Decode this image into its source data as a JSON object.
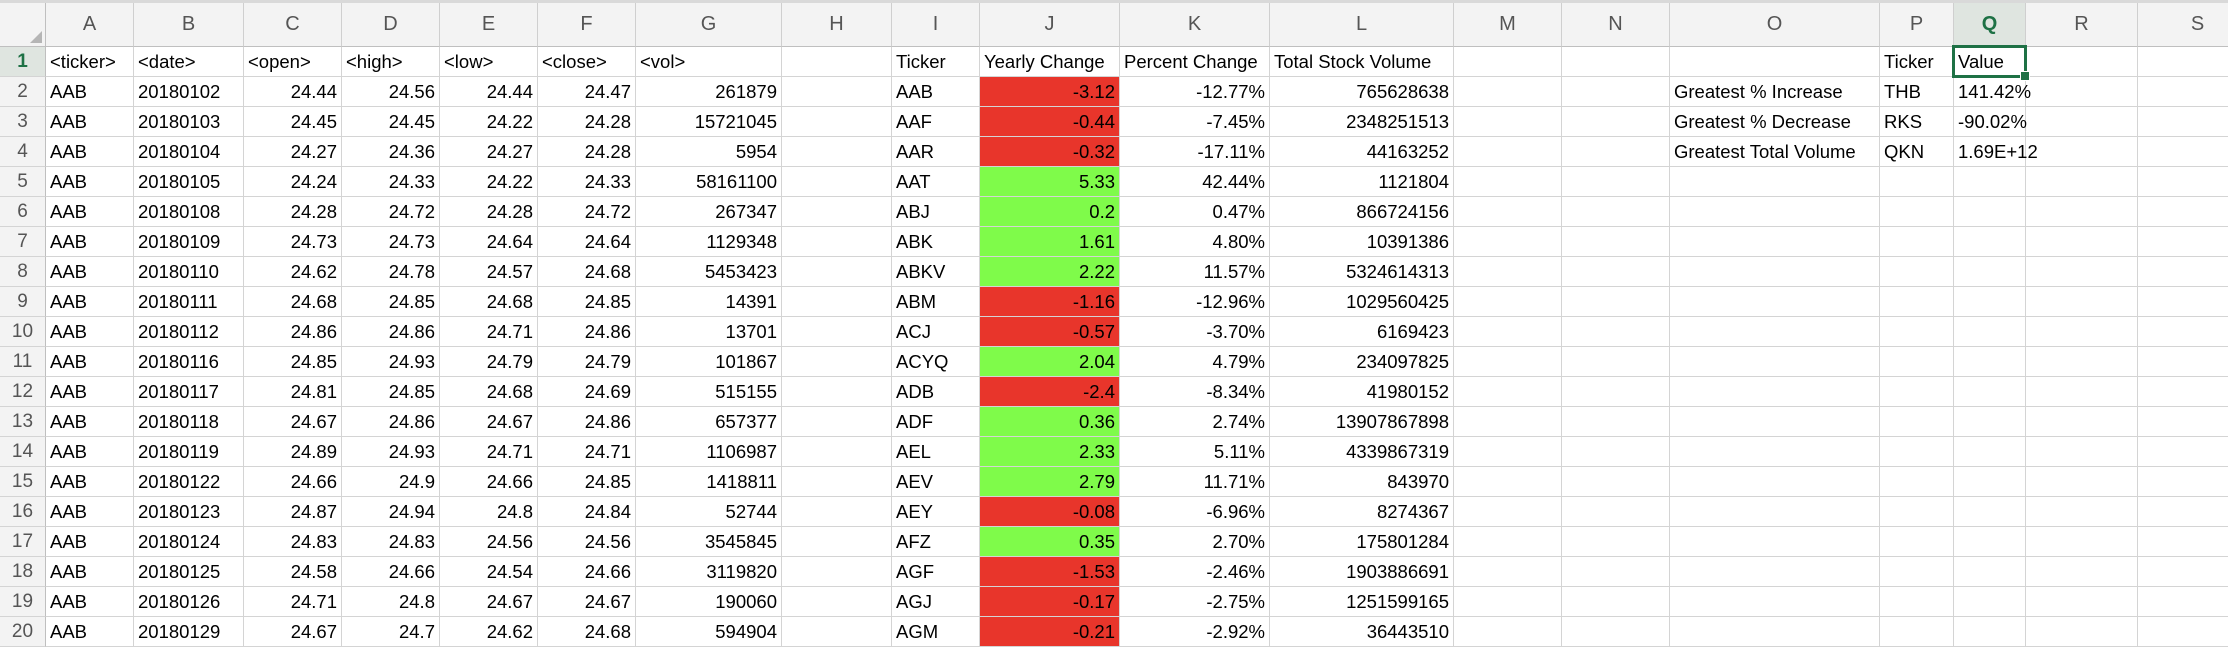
{
  "columns": [
    "A",
    "B",
    "C",
    "D",
    "E",
    "F",
    "G",
    "H",
    "I",
    "J",
    "K",
    "L",
    "M",
    "N",
    "O",
    "P",
    "Q",
    "R",
    "S"
  ],
  "row_numbers": [
    "1",
    "2",
    "3",
    "4",
    "5",
    "6",
    "7",
    "8",
    "9",
    "10",
    "11",
    "12",
    "13",
    "14",
    "15",
    "16",
    "17",
    "18",
    "19",
    "20"
  ],
  "active_cell": {
    "column": "Q",
    "row": "1"
  },
  "fill_colors": {
    "negative": "#e8352b",
    "positive": "#7ffb4a",
    "selection": "#1e7145"
  },
  "headers": {
    "ticker": "<ticker>",
    "date": "<date>",
    "open": "<open>",
    "high": "<high>",
    "low": "<low>",
    "close": "<close>",
    "vol": "<vol>",
    "sum_ticker": "Ticker",
    "yearly_change": "Yearly Change",
    "percent_change": "Percent Change",
    "total_volume": "Total Stock Volume",
    "greatest_ticker": "Ticker",
    "greatest_value": "Value"
  },
  "raw_rows": [
    [
      "AAB",
      "20180102",
      "24.44",
      "24.56",
      "24.44",
      "24.47",
      "261879"
    ],
    [
      "AAB",
      "20180103",
      "24.45",
      "24.45",
      "24.22",
      "24.28",
      "15721045"
    ],
    [
      "AAB",
      "20180104",
      "24.27",
      "24.36",
      "24.27",
      "24.28",
      "5954"
    ],
    [
      "AAB",
      "20180105",
      "24.24",
      "24.33",
      "24.22",
      "24.33",
      "58161100"
    ],
    [
      "AAB",
      "20180108",
      "24.28",
      "24.72",
      "24.28",
      "24.72",
      "267347"
    ],
    [
      "AAB",
      "20180109",
      "24.73",
      "24.73",
      "24.64",
      "24.64",
      "1129348"
    ],
    [
      "AAB",
      "20180110",
      "24.62",
      "24.78",
      "24.57",
      "24.68",
      "5453423"
    ],
    [
      "AAB",
      "20180111",
      "24.68",
      "24.85",
      "24.68",
      "24.85",
      "14391"
    ],
    [
      "AAB",
      "20180112",
      "24.86",
      "24.86",
      "24.71",
      "24.86",
      "13701"
    ],
    [
      "AAB",
      "20180116",
      "24.85",
      "24.93",
      "24.79",
      "24.79",
      "101867"
    ],
    [
      "AAB",
      "20180117",
      "24.81",
      "24.85",
      "24.68",
      "24.69",
      "515155"
    ],
    [
      "AAB",
      "20180118",
      "24.67",
      "24.86",
      "24.67",
      "24.86",
      "657377"
    ],
    [
      "AAB",
      "20180119",
      "24.89",
      "24.93",
      "24.71",
      "24.71",
      "1106987"
    ],
    [
      "AAB",
      "20180122",
      "24.66",
      "24.9",
      "24.66",
      "24.85",
      "1418811"
    ],
    [
      "AAB",
      "20180123",
      "24.87",
      "24.94",
      "24.8",
      "24.84",
      "52744"
    ],
    [
      "AAB",
      "20180124",
      "24.83",
      "24.83",
      "24.56",
      "24.56",
      "3545845"
    ],
    [
      "AAB",
      "20180125",
      "24.58",
      "24.66",
      "24.54",
      "24.66",
      "3119820"
    ],
    [
      "AAB",
      "20180126",
      "24.71",
      "24.8",
      "24.67",
      "24.67",
      "190060"
    ],
    [
      "AAB",
      "20180129",
      "24.67",
      "24.7",
      "24.62",
      "24.68",
      "594904"
    ]
  ],
  "summary_rows": [
    {
      "ticker": "AAB",
      "yearly": "-3.12",
      "percent": "-12.77%",
      "volume": "765628638",
      "sign": "neg"
    },
    {
      "ticker": "AAF",
      "yearly": "-0.44",
      "percent": "-7.45%",
      "volume": "2348251513",
      "sign": "neg"
    },
    {
      "ticker": "AAR",
      "yearly": "-0.32",
      "percent": "-17.11%",
      "volume": "44163252",
      "sign": "neg"
    },
    {
      "ticker": "AAT",
      "yearly": "5.33",
      "percent": "42.44%",
      "volume": "1121804",
      "sign": "pos"
    },
    {
      "ticker": "ABJ",
      "yearly": "0.2",
      "percent": "0.47%",
      "volume": "866724156",
      "sign": "pos"
    },
    {
      "ticker": "ABK",
      "yearly": "1.61",
      "percent": "4.80%",
      "volume": "10391386",
      "sign": "pos"
    },
    {
      "ticker": "ABKV",
      "yearly": "2.22",
      "percent": "11.57%",
      "volume": "5324614313",
      "sign": "pos"
    },
    {
      "ticker": "ABM",
      "yearly": "-1.16",
      "percent": "-12.96%",
      "volume": "1029560425",
      "sign": "neg"
    },
    {
      "ticker": "ACJ",
      "yearly": "-0.57",
      "percent": "-3.70%",
      "volume": "6169423",
      "sign": "neg"
    },
    {
      "ticker": "ACYQ",
      "yearly": "2.04",
      "percent": "4.79%",
      "volume": "234097825",
      "sign": "pos"
    },
    {
      "ticker": "ADB",
      "yearly": "-2.4",
      "percent": "-8.34%",
      "volume": "41980152",
      "sign": "neg"
    },
    {
      "ticker": "ADF",
      "yearly": "0.36",
      "percent": "2.74%",
      "volume": "13907867898",
      "sign": "pos"
    },
    {
      "ticker": "AEL",
      "yearly": "2.33",
      "percent": "5.11%",
      "volume": "4339867319",
      "sign": "pos"
    },
    {
      "ticker": "AEV",
      "yearly": "2.79",
      "percent": "11.71%",
      "volume": "843970",
      "sign": "pos"
    },
    {
      "ticker": "AEY",
      "yearly": "-0.08",
      "percent": "-6.96%",
      "volume": "8274367",
      "sign": "neg"
    },
    {
      "ticker": "AFZ",
      "yearly": "0.35",
      "percent": "2.70%",
      "volume": "175801284",
      "sign": "pos"
    },
    {
      "ticker": "AGF",
      "yearly": "-1.53",
      "percent": "-2.46%",
      "volume": "1903886691",
      "sign": "neg"
    },
    {
      "ticker": "AGJ",
      "yearly": "-0.17",
      "percent": "-2.75%",
      "volume": "1251599165",
      "sign": "neg"
    },
    {
      "ticker": "AGM",
      "yearly": "-0.21",
      "percent": "-2.92%",
      "volume": "36443510",
      "sign": "neg"
    }
  ],
  "greatest": [
    {
      "label": "Greatest % Increase",
      "ticker": "THB",
      "value": "141.42%"
    },
    {
      "label": "Greatest % Decrease",
      "ticker": "RKS",
      "value": "-90.02%"
    },
    {
      "label": "Greatest Total Volume",
      "ticker": "QKN",
      "value": "1.69E+12"
    }
  ]
}
